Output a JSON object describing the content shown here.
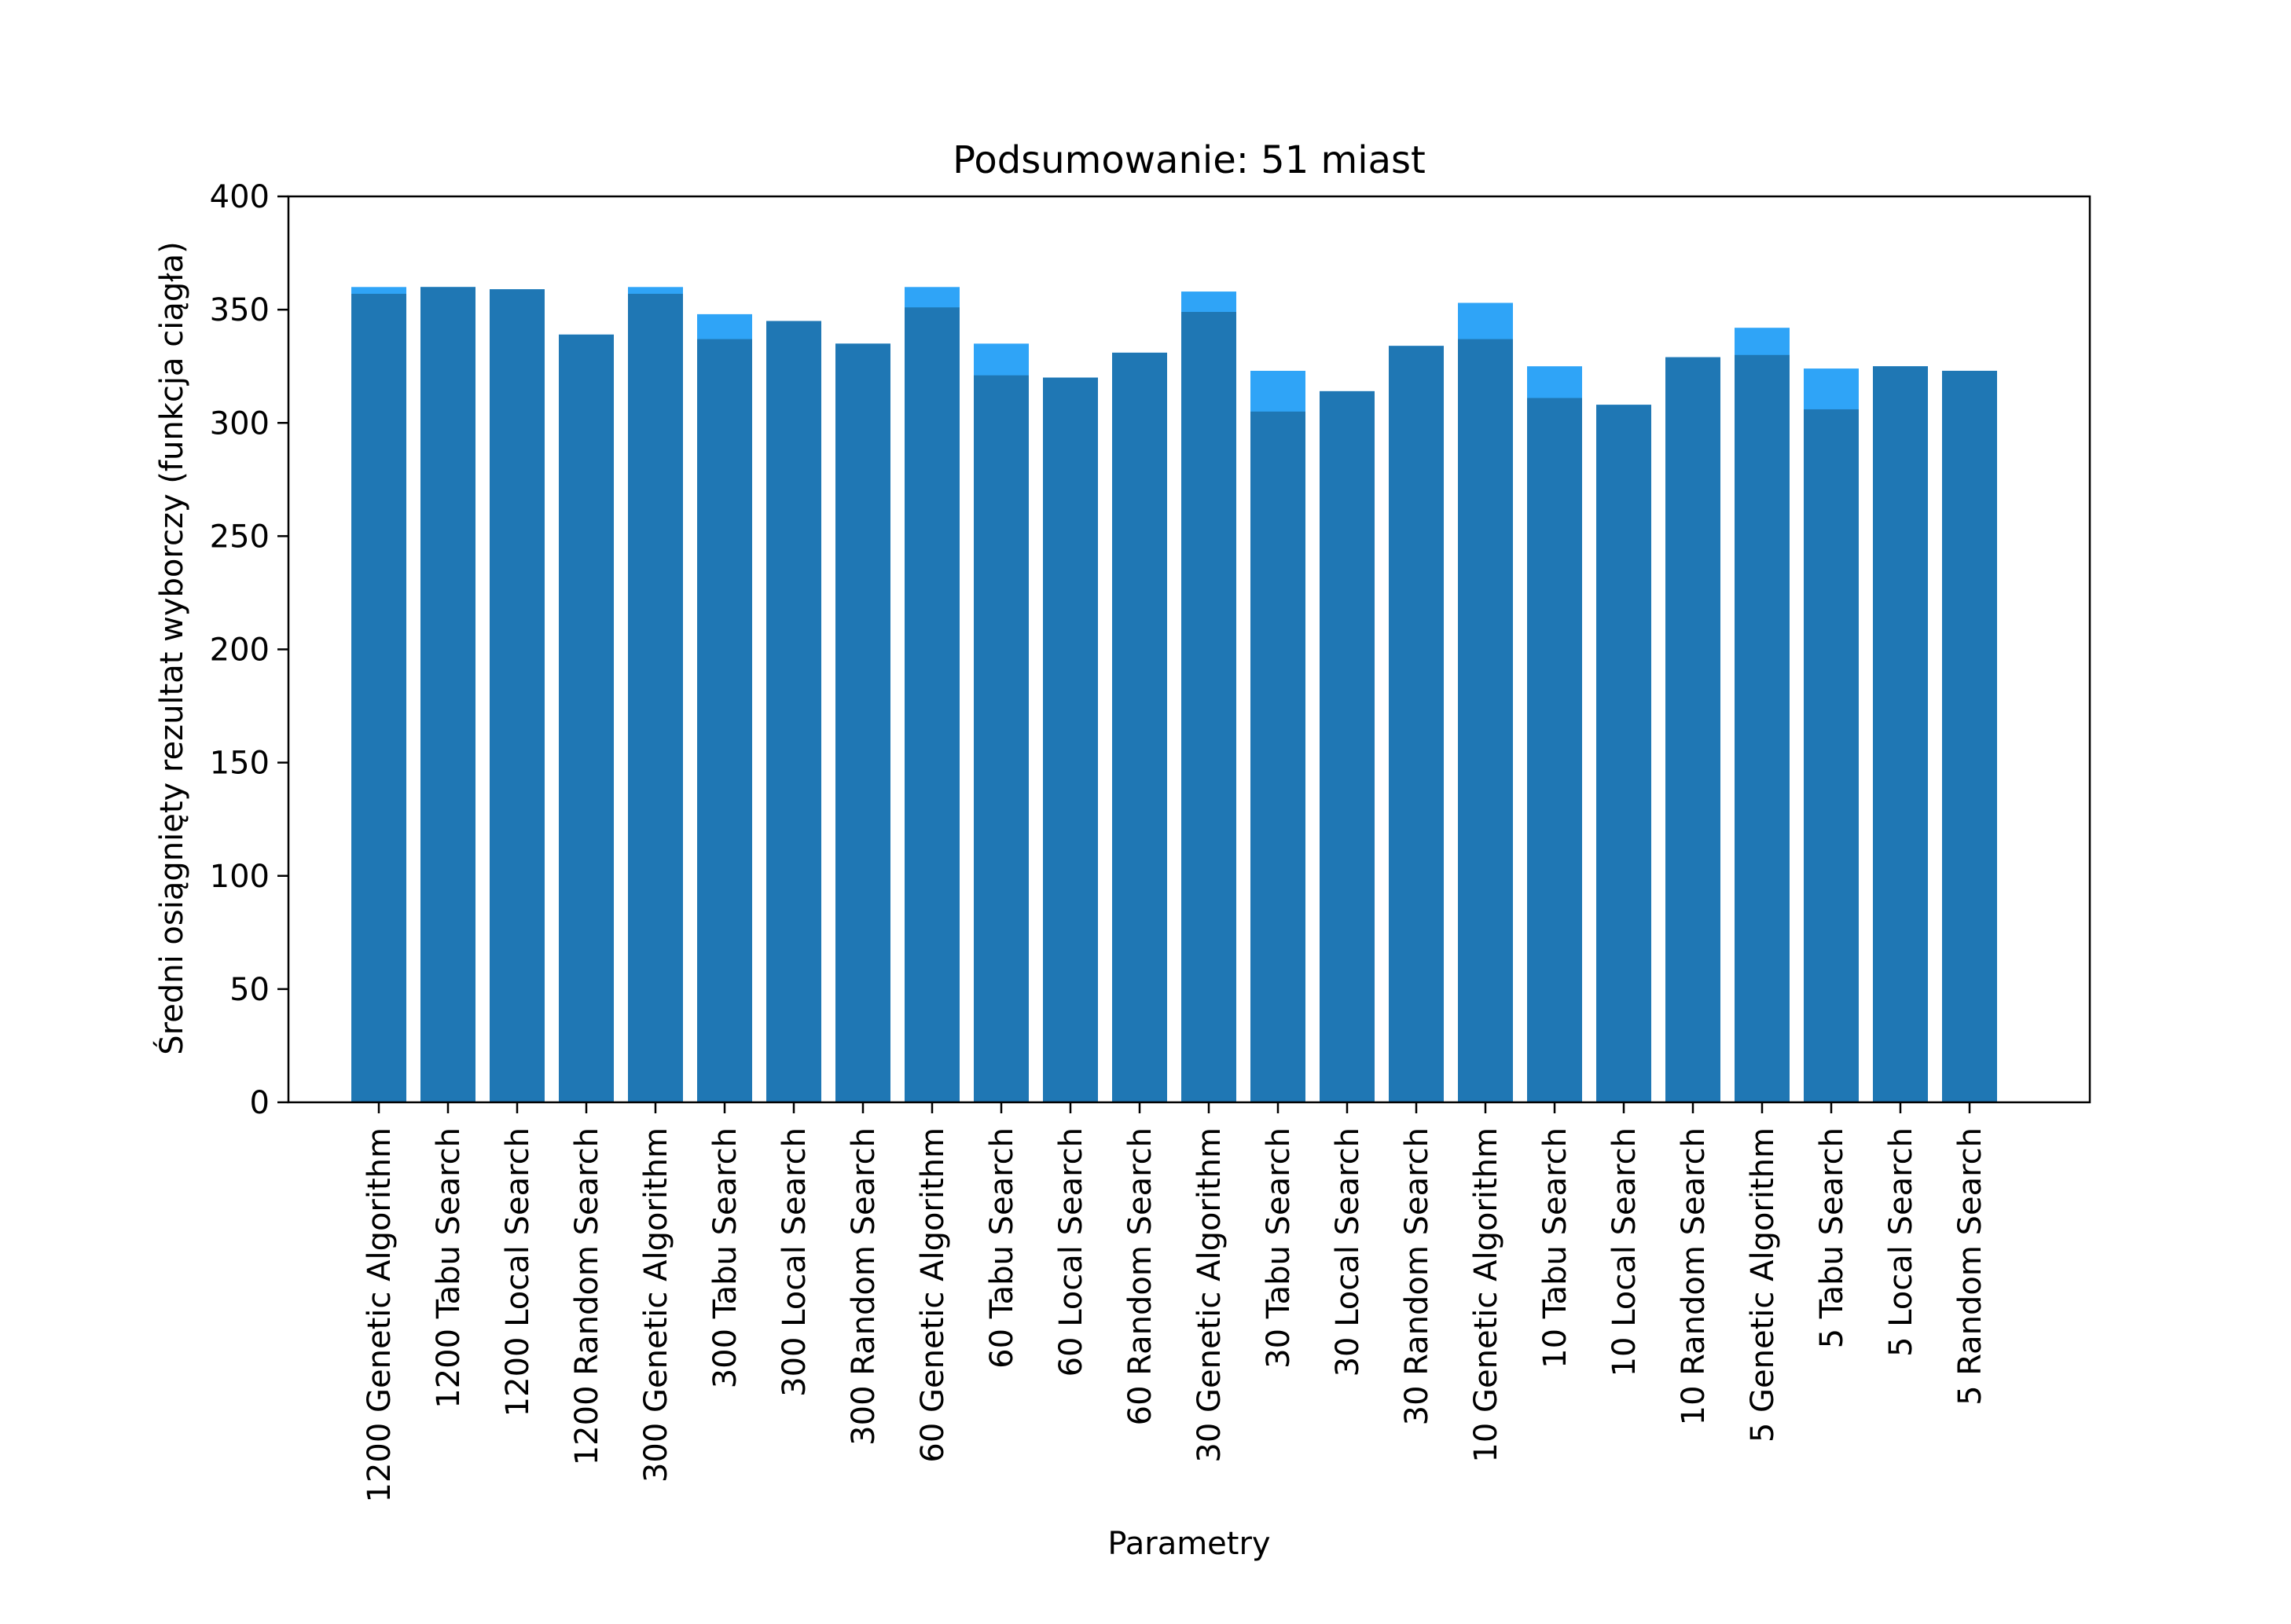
{
  "chart_data": {
    "type": "bar",
    "title": "Podsumowanie: 51 miast",
    "xlabel": "Parametry",
    "ylabel": "Średni osiągnięty rezultat wyborczy (funkcja ciągła)",
    "ylim": [
      0,
      400
    ],
    "yticks": [
      0,
      50,
      100,
      150,
      200,
      250,
      300,
      350,
      400
    ],
    "grid": false,
    "categories": [
      "1200 Genetic Algorithm",
      "1200 Tabu Search",
      "1200 Local Search",
      "1200 Random Search",
      "300 Genetic Algorithm",
      "300 Tabu Search",
      "300 Local Search",
      "300 Random Search",
      "60 Genetic Algorithm",
      "60 Tabu Search",
      "60 Local Search",
      "60 Random Search",
      "30 Genetic Algorithm",
      "30 Tabu Search",
      "30 Local Search",
      "30 Random Search",
      "10 Genetic Algorithm",
      "10 Tabu Search",
      "10 Local Search",
      "10 Random Search",
      "5 Genetic Algorithm",
      "5 Tabu Search",
      "5 Local Search",
      "5 Random Search"
    ],
    "series": [
      {
        "color": "#2fa4f7",
        "values": [
          360,
          360,
          359,
          339,
          360,
          348,
          345,
          335,
          360,
          335,
          320,
          331,
          358,
          323,
          314,
          334,
          353,
          325,
          308,
          329,
          342,
          324,
          325,
          323
        ]
      },
      {
        "color": "#1f77b4",
        "values": [
          357,
          360,
          359,
          339,
          357,
          337,
          345,
          335,
          351,
          321,
          320,
          331,
          349,
          305,
          314,
          334,
          337,
          311,
          308,
          329,
          330,
          306,
          325,
          323
        ]
      }
    ]
  }
}
